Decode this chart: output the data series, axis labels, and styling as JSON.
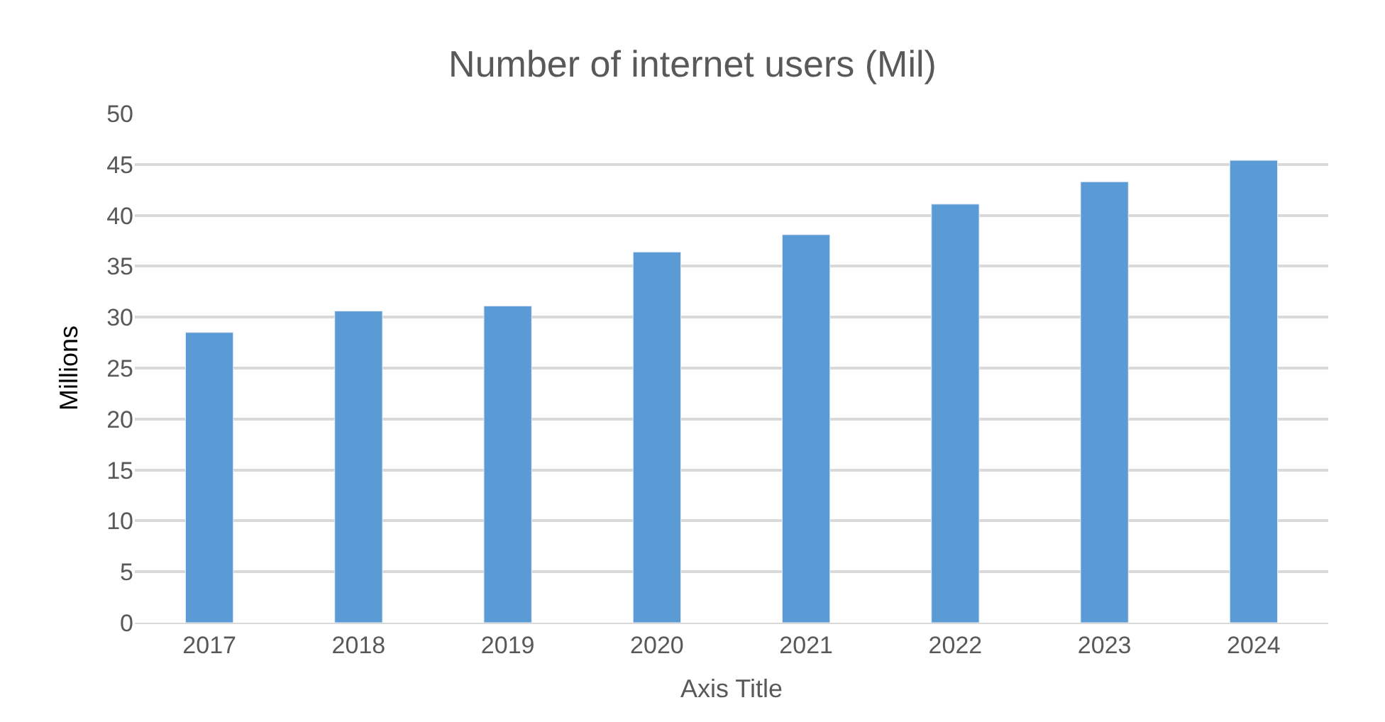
{
  "chart_data": {
    "type": "bar",
    "title": "Number of internet users (Mil)",
    "xlabel": "Axis Title",
    "ylabel": "Millions",
    "categories": [
      "2017",
      "2018",
      "2019",
      "2020",
      "2021",
      "2022",
      "2023",
      "2024"
    ],
    "values": [
      28.5,
      30.6,
      31.1,
      36.4,
      38.1,
      41.1,
      43.3,
      45.4
    ],
    "color": "#5b9bd5",
    "ylim": [
      0,
      50
    ],
    "yticks": [
      0,
      5,
      10,
      15,
      20,
      25,
      30,
      35,
      40,
      45,
      50
    ],
    "grid": "y"
  }
}
